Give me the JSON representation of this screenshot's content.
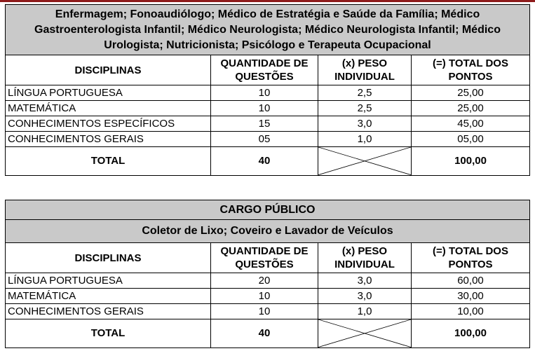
{
  "table1": {
    "title": "Enfermagem; Fonoaudiólogo; Médico de Estratégia e Saúde da Família; Médico Gastroenterologista Infantil; Médico Neurologista; Médico Neurologista Infantil; Médico Urologista; Nutricionista; Psicólogo e Terapeuta Ocupacional",
    "headers": [
      "DISCIPLINAS",
      "QUANTIDADE DE QUESTÕES",
      "(x) PESO INDIVIDUAL",
      "(=) TOTAL DOS PONTOS"
    ],
    "rows": [
      [
        "LÍNGUA PORTUGUESA",
        "10",
        "2,5",
        "25,00"
      ],
      [
        "MATEMÁTICA",
        "10",
        "2,5",
        "25,00"
      ],
      [
        "CONHECIMENTOS ESPECÍFICOS",
        "15",
        "3,0",
        "45,00"
      ],
      [
        "CONHECIMENTOS GERAIS",
        "05",
        "1,0",
        "05,00"
      ]
    ],
    "total": [
      "TOTAL",
      "40",
      "100,00"
    ]
  },
  "table2": {
    "section": "CARGO PÚBLICO",
    "title": "Coletor de Lixo; Coveiro e Lavador de Veículos",
    "headers": [
      "DISCIPLINAS",
      "QUANTIDADE DE QUESTÕES",
      "(x) PESO INDIVIDUAL",
      "(=) TOTAL DOS PONTOS"
    ],
    "rows": [
      [
        "LÍNGUA PORTUGUESA",
        "20",
        "3,0",
        "60,00"
      ],
      [
        "MATEMÁTICA",
        "10",
        "3,0",
        "30,00"
      ],
      [
        "CONHECIMENTOS GERAIS",
        "10",
        "1,0",
        "10,00"
      ]
    ],
    "total": [
      "TOTAL",
      "40",
      "100,00"
    ]
  }
}
